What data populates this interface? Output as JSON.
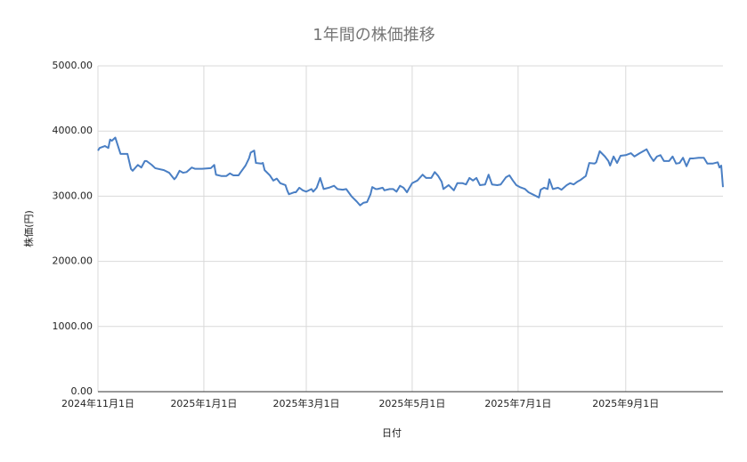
{
  "chart_data": {
    "type": "line",
    "title": "1年間の株価推移",
    "x_label": "日付",
    "y_label": "株価(円)",
    "x": [
      "2024-11-01",
      "2024-11-02",
      "2024-11-05",
      "2024-11-07",
      "2024-11-08",
      "2024-11-09",
      "2024-11-11",
      "2024-11-14",
      "2024-11-18",
      "2024-11-20",
      "2024-11-21",
      "2024-11-24",
      "2024-11-26",
      "2024-11-28",
      "2024-11-29",
      "2024-12-02",
      "2024-12-04",
      "2024-12-09",
      "2024-12-12",
      "2024-12-15",
      "2024-12-16",
      "2024-12-18",
      "2024-12-20",
      "2024-12-22",
      "2024-12-25",
      "2024-12-27",
      "2024-12-31",
      "2025-01-05",
      "2025-01-07",
      "2025-01-08",
      "2025-01-11",
      "2025-01-14",
      "2025-01-16",
      "2025-01-18",
      "2025-01-21",
      "2025-01-22",
      "2025-01-25",
      "2025-01-27",
      "2025-01-28",
      "2025-01-30",
      "2025-01-31",
      "2025-02-03",
      "2025-02-04",
      "2025-02-05",
      "2025-02-08",
      "2025-02-10",
      "2025-02-12",
      "2025-02-14",
      "2025-02-17",
      "2025-02-18",
      "2025-02-19",
      "2025-02-22",
      "2025-02-23",
      "2025-02-25",
      "2025-02-27",
      "2025-03-01",
      "2025-03-04",
      "2025-03-05",
      "2025-03-07",
      "2025-03-09",
      "2025-03-11",
      "2025-03-14",
      "2025-03-17",
      "2025-03-19",
      "2025-03-22",
      "2025-03-24",
      "2025-03-27",
      "2025-03-30",
      "2025-04-01",
      "2025-04-03",
      "2025-04-05",
      "2025-04-07",
      "2025-04-08",
      "2025-04-10",
      "2025-04-11",
      "2025-04-14",
      "2025-04-15",
      "2025-04-18",
      "2025-04-20",
      "2025-04-22",
      "2025-04-24",
      "2025-04-26",
      "2025-04-28",
      "2025-04-29",
      "2025-05-01",
      "2025-05-04",
      "2025-05-07",
      "2025-05-09",
      "2025-05-12",
      "2025-05-14",
      "2025-05-16",
      "2025-05-18",
      "2025-05-19",
      "2025-05-22",
      "2025-05-25",
      "2025-05-27",
      "2025-05-30",
      "2025-06-01",
      "2025-06-03",
      "2025-06-05",
      "2025-06-07",
      "2025-06-09",
      "2025-06-12",
      "2025-06-14",
      "2025-06-16",
      "2025-06-19",
      "2025-06-21",
      "2025-06-24",
      "2025-06-26",
      "2025-06-28",
      "2025-06-30",
      "2025-07-02",
      "2025-07-05",
      "2025-07-07",
      "2025-07-10",
      "2025-07-13",
      "2025-07-14",
      "2025-07-16",
      "2025-07-18",
      "2025-07-19",
      "2025-07-21",
      "2025-07-24",
      "2025-07-26",
      "2025-07-29",
      "2025-07-31",
      "2025-08-02",
      "2025-08-04",
      "2025-08-06",
      "2025-08-09",
      "2025-08-11",
      "2025-08-14",
      "2025-08-15",
      "2025-08-17",
      "2025-08-20",
      "2025-08-22",
      "2025-08-23",
      "2025-08-25",
      "2025-08-27",
      "2025-08-29",
      "2025-09-01",
      "2025-09-04",
      "2025-09-06",
      "2025-09-09",
      "2025-09-13",
      "2025-09-15",
      "2025-09-17",
      "2025-09-19",
      "2025-09-21",
      "2025-09-23",
      "2025-09-26",
      "2025-09-28",
      "2025-09-30",
      "2025-10-02",
      "2025-10-04",
      "2025-10-06",
      "2025-10-08",
      "2025-10-10",
      "2025-10-13",
      "2025-10-16",
      "2025-10-18",
      "2025-10-21",
      "2025-10-24",
      "2025-10-25",
      "2025-10-26",
      "2025-10-27"
    ],
    "series": [
      {
        "name": "株価",
        "color": "#4a7fc4",
        "values": [
          3700,
          3740,
          3770,
          3740,
          3870,
          3850,
          3900,
          3650,
          3650,
          3420,
          3390,
          3480,
          3440,
          3540,
          3540,
          3480,
          3430,
          3400,
          3360,
          3260,
          3290,
          3390,
          3360,
          3370,
          3440,
          3420,
          3420,
          3430,
          3480,
          3330,
          3310,
          3310,
          3350,
          3320,
          3320,
          3360,
          3470,
          3580,
          3670,
          3700,
          3510,
          3500,
          3510,
          3400,
          3320,
          3240,
          3270,
          3200,
          3170,
          3090,
          3030,
          3060,
          3060,
          3130,
          3090,
          3070,
          3110,
          3070,
          3130,
          3280,
          3110,
          3130,
          3160,
          3110,
          3100,
          3110,
          3000,
          2920,
          2860,
          2900,
          2910,
          3030,
          3140,
          3110,
          3110,
          3130,
          3090,
          3110,
          3110,
          3070,
          3160,
          3130,
          3060,
          3110,
          3200,
          3240,
          3330,
          3280,
          3280,
          3370,
          3310,
          3220,
          3110,
          3170,
          3090,
          3200,
          3200,
          3180,
          3280,
          3240,
          3280,
          3170,
          3180,
          3330,
          3180,
          3170,
          3180,
          3290,
          3320,
          3240,
          3170,
          3140,
          3110,
          3060,
          3020,
          2980,
          3100,
          3130,
          3110,
          3260,
          3110,
          3130,
          3100,
          3170,
          3200,
          3180,
          3220,
          3250,
          3310,
          3510,
          3500,
          3520,
          3690,
          3610,
          3540,
          3470,
          3610,
          3510,
          3620,
          3630,
          3660,
          3610,
          3660,
          3720,
          3620,
          3540,
          3610,
          3630,
          3540,
          3540,
          3610,
          3500,
          3510,
          3590,
          3460,
          3580,
          3580,
          3590,
          3590,
          3500,
          3500,
          3520,
          3440,
          3470,
          3140
        ]
      }
    ],
    "xlim": [
      "2024-11-01",
      "2025-10-27"
    ],
    "xticks": [
      {
        "value": "2024-11-01",
        "label": "2024年11月1日"
      },
      {
        "value": "2025-01-01",
        "label": "2025年1月1日"
      },
      {
        "value": "2025-03-01",
        "label": "2025年3月1日"
      },
      {
        "value": "2025-05-01",
        "label": "2025年5月1日"
      },
      {
        "value": "2025-07-01",
        "label": "2025年7月1日"
      },
      {
        "value": "2025-09-01",
        "label": "2025年9月1日"
      }
    ],
    "ylim": [
      0,
      5000
    ],
    "yticks": [
      {
        "value": 0,
        "label": "0.00"
      },
      {
        "value": 1000,
        "label": "1000.00"
      },
      {
        "value": 2000,
        "label": "2000.00"
      },
      {
        "value": 3000,
        "label": "3000.00"
      },
      {
        "value": 4000,
        "label": "4000.00"
      },
      {
        "value": 5000,
        "label": "5000.00"
      }
    ],
    "grid": true
  }
}
